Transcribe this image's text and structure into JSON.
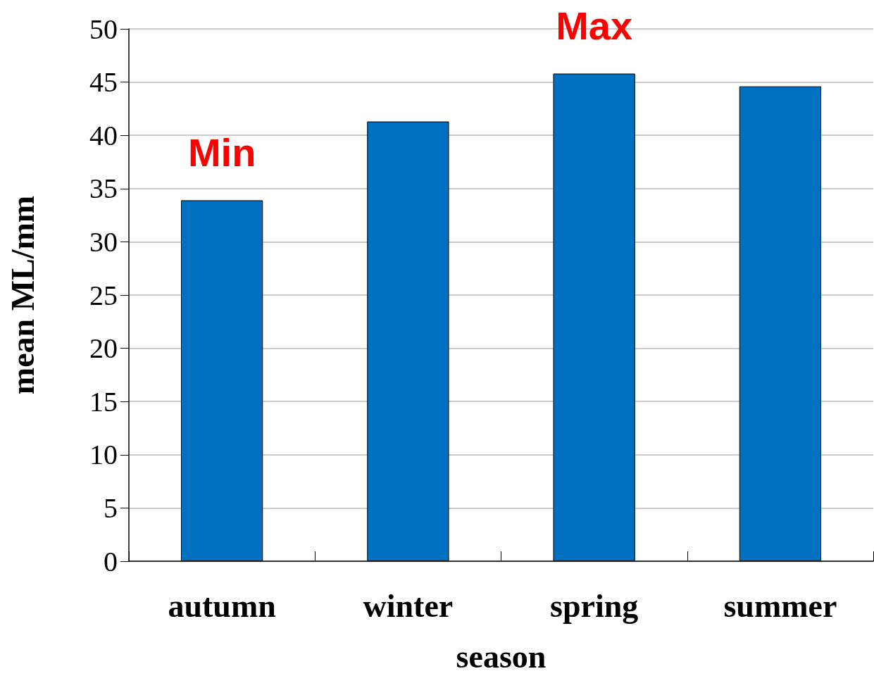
{
  "chart_data": {
    "type": "bar",
    "xlabel": "season",
    "ylabel": "mean ML/mm",
    "categories": [
      "autumn",
      "winter",
      "spring",
      "summer"
    ],
    "values": [
      33.9,
      41.3,
      45.8,
      44.6
    ],
    "color": "#0070c0",
    "ylim": [
      0,
      50
    ],
    "yticks": [
      0,
      5,
      10,
      15,
      20,
      25,
      30,
      35,
      40,
      45,
      50
    ],
    "grid": "y",
    "annotations": [
      {
        "text": "Min",
        "x": "autumn",
        "y": 33.9
      },
      {
        "text": "Max",
        "x": "spring",
        "y": 45.8
      }
    ]
  }
}
